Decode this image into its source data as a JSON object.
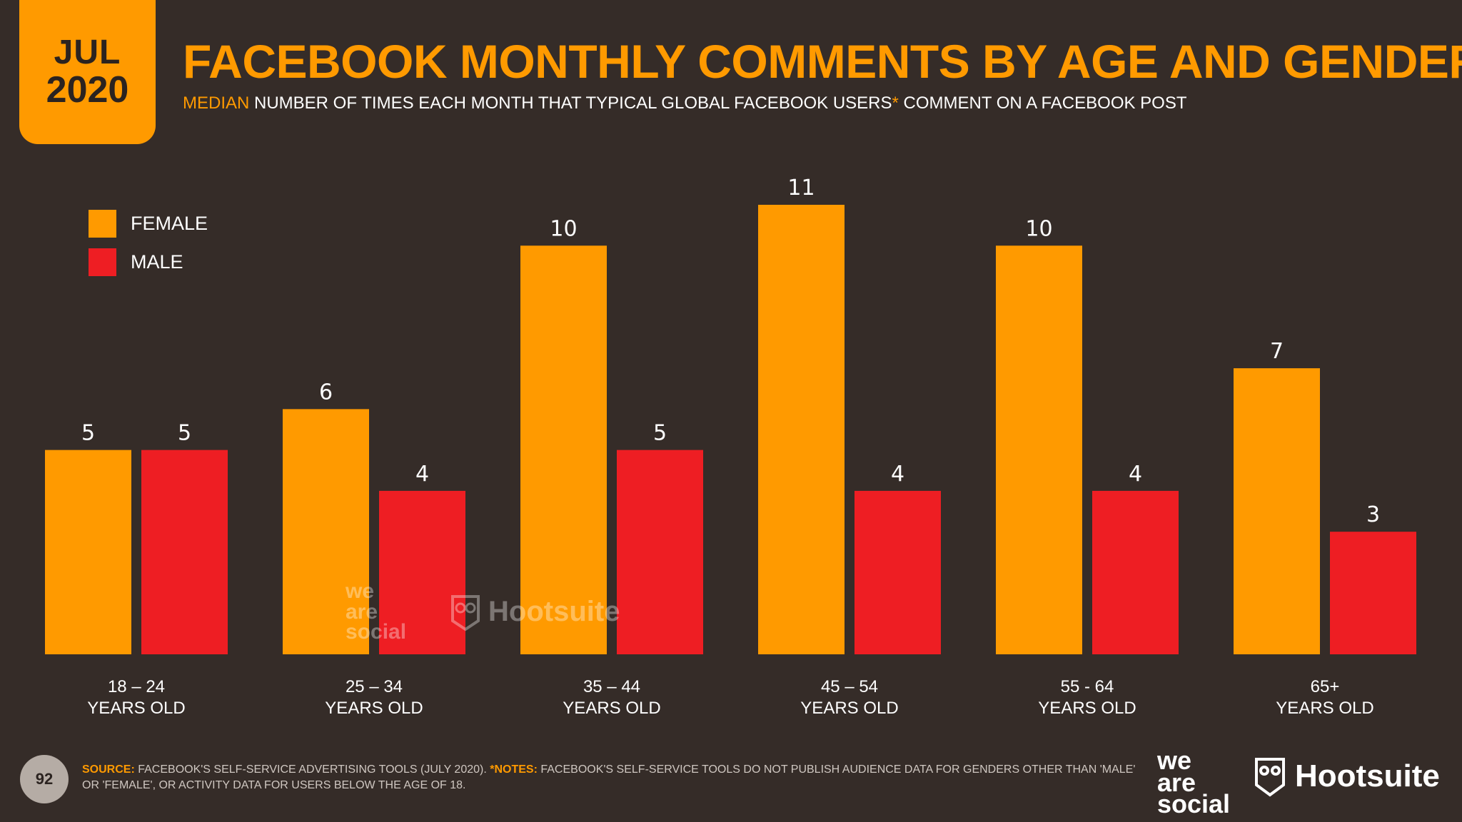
{
  "badge": {
    "month": "JUL",
    "year": "2020"
  },
  "header": {
    "title": "FACEBOOK MONTHLY COMMENTS BY AGE AND GENDER",
    "subtitle_highlight": "MEDIAN",
    "subtitle_rest_1": " NUMBER OF TIMES EACH MONTH THAT TYPICAL GLOBAL FACEBOOK USERS",
    "subtitle_asterisk": "*",
    "subtitle_rest_2": " COMMENT ON A FACEBOOK POST"
  },
  "colors": {
    "background": "#352c28",
    "accent": "#ff9a00",
    "female": "#ff9a00",
    "male": "#ee1e23"
  },
  "chart_data": {
    "type": "bar",
    "categories": [
      "18 – 24",
      "25 – 34",
      "35 – 44",
      "45 – 54",
      "55 - 64",
      "65+"
    ],
    "category_sublabel": "YEARS OLD",
    "series": [
      {
        "name": "FEMALE",
        "color": "#ff9a00",
        "values": [
          5,
          6,
          10,
          11,
          10,
          7
        ]
      },
      {
        "name": "MALE",
        "color": "#ee1e23",
        "values": [
          5,
          4,
          5,
          4,
          4,
          3
        ]
      }
    ],
    "ylim": [
      0,
      11
    ],
    "grid": false,
    "legend_position": "top-left",
    "data_labels": true
  },
  "watermark": {
    "wordmark": [
      "we",
      "are",
      "social"
    ],
    "brand": "Hootsuite"
  },
  "footer": {
    "page_number": "92",
    "source_label": "SOURCE:",
    "source_text": " FACEBOOK'S SELF-SERVICE ADVERTISING TOOLS (JULY 2020). ",
    "notes_label": "*NOTES:",
    "notes_text": " FACEBOOK'S SELF-SERVICE TOOLS DO NOT PUBLISH AUDIENCE DATA FOR GENDERS OTHER THAN 'MALE' OR 'FEMALE', OR ACTIVITY DATA FOR USERS BELOW THE AGE OF 18.",
    "logo_we_are_social": [
      "we",
      "are",
      "social"
    ],
    "logo_hootsuite": "Hootsuite"
  }
}
